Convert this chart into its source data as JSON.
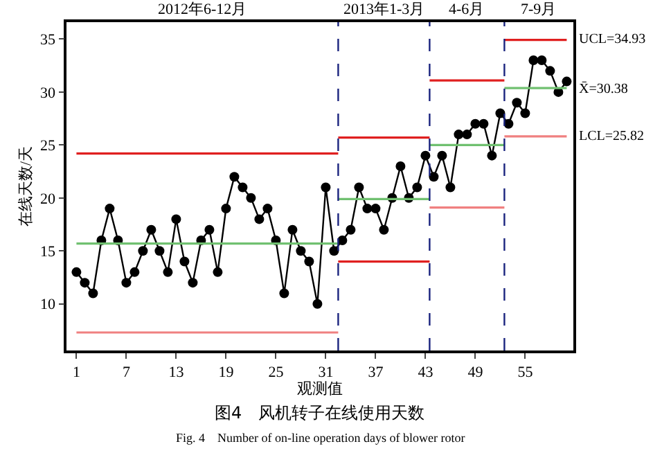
{
  "chart_data": {
    "type": "line",
    "xlabel": "观测值",
    "ylabel": "在线天数/天",
    "xlim": [
      -0.2,
      60.8
    ],
    "xticks": [
      1,
      7,
      13,
      19,
      25,
      31,
      37,
      43,
      49,
      55
    ],
    "ylim": [
      5.6,
      36.6
    ],
    "yticks": [
      10,
      15,
      20,
      25,
      30,
      35
    ],
    "marker": "circle",
    "line_style": "solid",
    "series": [
      {
        "color": "#000000",
        "x": [
          1,
          2,
          3,
          4,
          5,
          6,
          7,
          8,
          9,
          10,
          11,
          12,
          13,
          14,
          15,
          16,
          17,
          18,
          19,
          20,
          21,
          22,
          23,
          24,
          25,
          26,
          27,
          28,
          29,
          30,
          31,
          32,
          33,
          34,
          35,
          36,
          37,
          38,
          39,
          40,
          41,
          42,
          43,
          44,
          45,
          46,
          47,
          48,
          49,
          50,
          51,
          52,
          53,
          54,
          55,
          56,
          57,
          58,
          59,
          60
        ],
        "values": [
          13,
          12,
          11,
          16,
          19,
          16,
          12,
          13,
          15,
          17,
          15,
          13,
          18,
          14,
          12,
          16,
          17,
          13,
          19,
          22,
          21,
          20,
          18,
          19,
          16,
          11,
          17,
          15,
          14,
          10,
          21,
          15,
          16,
          17,
          21,
          19,
          19,
          17,
          20,
          23,
          20,
          21,
          24,
          22,
          24,
          21,
          26,
          26,
          27,
          27,
          24,
          28,
          27,
          29,
          28,
          33,
          33,
          32,
          30,
          31
        ]
      },
      {
        "color": "#e02020",
        "marker": "none",
        "x": [
          1,
          32.5
        ],
        "values": [
          24.2,
          24.2
        ]
      },
      {
        "color": "#70c070",
        "marker": "none",
        "x": [
          1,
          32.5
        ],
        "values": [
          15.7,
          15.7
        ]
      },
      {
        "color": "#f08080",
        "marker": "none",
        "x": [
          1,
          32.5
        ],
        "values": [
          7.3,
          7.3
        ]
      },
      {
        "color": "#e02020",
        "marker": "none",
        "x": [
          32.5,
          43.5
        ],
        "values": [
          25.7,
          25.7
        ]
      },
      {
        "color": "#70c070",
        "marker": "none",
        "x": [
          32.5,
          43.5
        ],
        "values": [
          19.9,
          19.9
        ]
      },
      {
        "color": "#e02020",
        "marker": "none",
        "x": [
          32.5,
          43.5
        ],
        "values": [
          14.0,
          14.0
        ]
      },
      {
        "color": "#e02020",
        "marker": "none",
        "x": [
          43.5,
          52.5
        ],
        "values": [
          31.1,
          31.1
        ]
      },
      {
        "color": "#70c070",
        "marker": "none",
        "x": [
          43.5,
          52.5
        ],
        "values": [
          25.0,
          25.0
        ]
      },
      {
        "color": "#f08080",
        "marker": "none",
        "x": [
          43.5,
          52.5
        ],
        "values": [
          19.1,
          19.1
        ]
      },
      {
        "color": "#e02020",
        "marker": "none",
        "x": [
          52.5,
          60
        ],
        "values": [
          34.93,
          34.93
        ]
      },
      {
        "color": "#70c070",
        "marker": "none",
        "x": [
          52.5,
          60
        ],
        "values": [
          30.38,
          30.38
        ]
      },
      {
        "color": "#f08080",
        "marker": "none",
        "x": [
          52.5,
          60
        ],
        "values": [
          25.82,
          25.82
        ]
      }
    ],
    "ref_lines": [
      {
        "axis": "x",
        "value": 32.5,
        "color": "#1a237e",
        "line_style": "dashed"
      },
      {
        "axis": "x",
        "value": 43.5,
        "color": "#1a237e",
        "line_style": "dashed"
      },
      {
        "axis": "x",
        "value": 52.5,
        "color": "#1a237e",
        "line_style": "dashed"
      }
    ],
    "annotations": [
      "2012年6-12月",
      "2013年1-3月",
      "4-6月",
      "7-9月",
      "UCL=34.93",
      "X̄=30.38",
      "LCL=25.82",
      "图4　风机转子在线使用天数",
      "Fig. 4　Number of on-line operation days of blower rotor"
    ]
  }
}
